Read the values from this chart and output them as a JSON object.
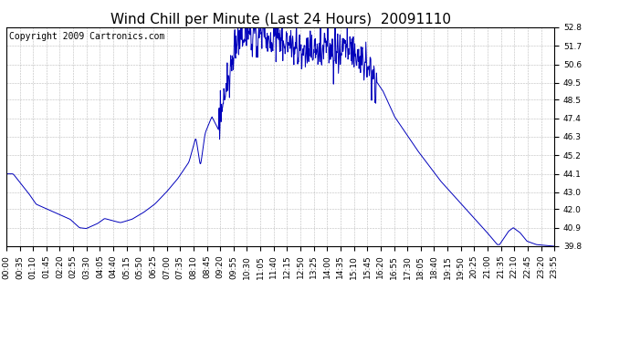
{
  "title": "Wind Chill per Minute (Last 24 Hours)  20091110",
  "copyright": "Copyright 2009 Cartronics.com",
  "line_color": "#0000bb",
  "background_color": "#ffffff",
  "grid_color": "#bbbbbb",
  "ylim": [
    39.8,
    52.8
  ],
  "yticks": [
    39.8,
    40.9,
    42.0,
    43.0,
    44.1,
    45.2,
    46.3,
    47.4,
    48.5,
    49.5,
    50.6,
    51.7,
    52.8
  ],
  "xtick_labels": [
    "00:00",
    "00:35",
    "01:10",
    "01:45",
    "02:20",
    "02:55",
    "03:30",
    "04:05",
    "04:40",
    "05:15",
    "05:50",
    "06:25",
    "07:00",
    "07:35",
    "08:10",
    "08:45",
    "09:20",
    "09:55",
    "10:30",
    "11:05",
    "11:40",
    "12:15",
    "12:50",
    "13:25",
    "14:00",
    "14:35",
    "15:10",
    "15:45",
    "16:20",
    "16:55",
    "17:30",
    "18:05",
    "18:40",
    "19:15",
    "19:50",
    "20:25",
    "21:00",
    "21:35",
    "22:10",
    "22:45",
    "23:20",
    "23:55"
  ],
  "title_fontsize": 11,
  "copyright_fontsize": 7,
  "tick_fontsize": 6.5
}
